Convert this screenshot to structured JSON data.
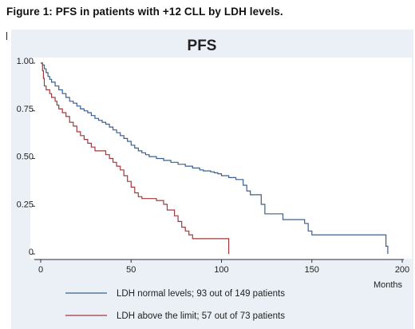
{
  "caption": "Figure 1: PFS in patients with +12 CLL by LDH levels.",
  "chart_data": {
    "type": "line",
    "title": "PFS",
    "xlabel": "Months",
    "ylabel": "",
    "xlim": [
      0,
      200
    ],
    "ylim": [
      0,
      1
    ],
    "x_ticks": [
      0,
      50,
      100,
      150,
      200
    ],
    "y_ticks": [
      0,
      0.25,
      0.5,
      0.75,
      1.0
    ],
    "y_tick_labels": [
      "0",
      "0.25",
      "0.50",
      "0.75",
      "1.00"
    ],
    "grid": false,
    "legend_position": "bottom",
    "series": [
      {
        "name": "LDH normal levels; 93 out of 149 patients",
        "color": "#3b5f8f",
        "points": [
          [
            0,
            1.0
          ],
          [
            1,
            0.99
          ],
          [
            2,
            0.97
          ],
          [
            3,
            0.95
          ],
          [
            4,
            0.93
          ],
          [
            5,
            0.915
          ],
          [
            6,
            0.9
          ],
          [
            8,
            0.88
          ],
          [
            10,
            0.86
          ],
          [
            12,
            0.84
          ],
          [
            14,
            0.82
          ],
          [
            16,
            0.8
          ],
          [
            18,
            0.79
          ],
          [
            20,
            0.775
          ],
          [
            22,
            0.76
          ],
          [
            24,
            0.75
          ],
          [
            26,
            0.74
          ],
          [
            28,
            0.725
          ],
          [
            30,
            0.71
          ],
          [
            32,
            0.7
          ],
          [
            34,
            0.69
          ],
          [
            36,
            0.68
          ],
          [
            38,
            0.665
          ],
          [
            40,
            0.65
          ],
          [
            42,
            0.635
          ],
          [
            44,
            0.62
          ],
          [
            46,
            0.605
          ],
          [
            48,
            0.59
          ],
          [
            50,
            0.57
          ],
          [
            52,
            0.555
          ],
          [
            54,
            0.54
          ],
          [
            56,
            0.53
          ],
          [
            58,
            0.52
          ],
          [
            60,
            0.51
          ],
          [
            64,
            0.5
          ],
          [
            68,
            0.49
          ],
          [
            72,
            0.48
          ],
          [
            76,
            0.47
          ],
          [
            80,
            0.46
          ],
          [
            84,
            0.45
          ],
          [
            88,
            0.44
          ],
          [
            90,
            0.435
          ],
          [
            94,
            0.43
          ],
          [
            96,
            0.425
          ],
          [
            98,
            0.42
          ],
          [
            100,
            0.41
          ],
          [
            104,
            0.4
          ],
          [
            108,
            0.39
          ],
          [
            112,
            0.36
          ],
          [
            114,
            0.33
          ],
          [
            116,
            0.31
          ],
          [
            120,
            0.31
          ],
          [
            122,
            0.26
          ],
          [
            124,
            0.21
          ],
          [
            132,
            0.21
          ],
          [
            134,
            0.18
          ],
          [
            144,
            0.18
          ],
          [
            146,
            0.16
          ],
          [
            148,
            0.12
          ],
          [
            150,
            0.1
          ],
          [
            189,
            0.1
          ],
          [
            191,
            0.04
          ],
          [
            192,
            0.0
          ]
        ]
      },
      {
        "name": "LDH above the limit; 57 out of 73 patients",
        "color": "#a0393d",
        "points": [
          [
            0,
            1.0
          ],
          [
            1,
            0.96
          ],
          [
            1.5,
            0.92
          ],
          [
            2,
            0.88
          ],
          [
            3,
            0.86
          ],
          [
            5,
            0.84
          ],
          [
            6,
            0.82
          ],
          [
            8,
            0.8
          ],
          [
            9,
            0.78
          ],
          [
            10,
            0.76
          ],
          [
            12,
            0.74
          ],
          [
            14,
            0.72
          ],
          [
            16,
            0.69
          ],
          [
            18,
            0.67
          ],
          [
            20,
            0.64
          ],
          [
            22,
            0.62
          ],
          [
            24,
            0.6
          ],
          [
            26,
            0.58
          ],
          [
            28,
            0.56
          ],
          [
            30,
            0.54
          ],
          [
            34,
            0.54
          ],
          [
            36,
            0.52
          ],
          [
            38,
            0.5
          ],
          [
            40,
            0.48
          ],
          [
            42,
            0.46
          ],
          [
            44,
            0.44
          ],
          [
            46,
            0.41
          ],
          [
            48,
            0.38
          ],
          [
            50,
            0.35
          ],
          [
            52,
            0.32
          ],
          [
            54,
            0.3
          ],
          [
            56,
            0.29
          ],
          [
            60,
            0.29
          ],
          [
            64,
            0.28
          ],
          [
            68,
            0.26
          ],
          [
            70,
            0.23
          ],
          [
            74,
            0.2
          ],
          [
            76,
            0.17
          ],
          [
            78,
            0.14
          ],
          [
            80,
            0.12
          ],
          [
            82,
            0.1
          ],
          [
            84,
            0.08
          ],
          [
            103,
            0.08
          ],
          [
            104,
            0.0
          ]
        ]
      }
    ]
  }
}
